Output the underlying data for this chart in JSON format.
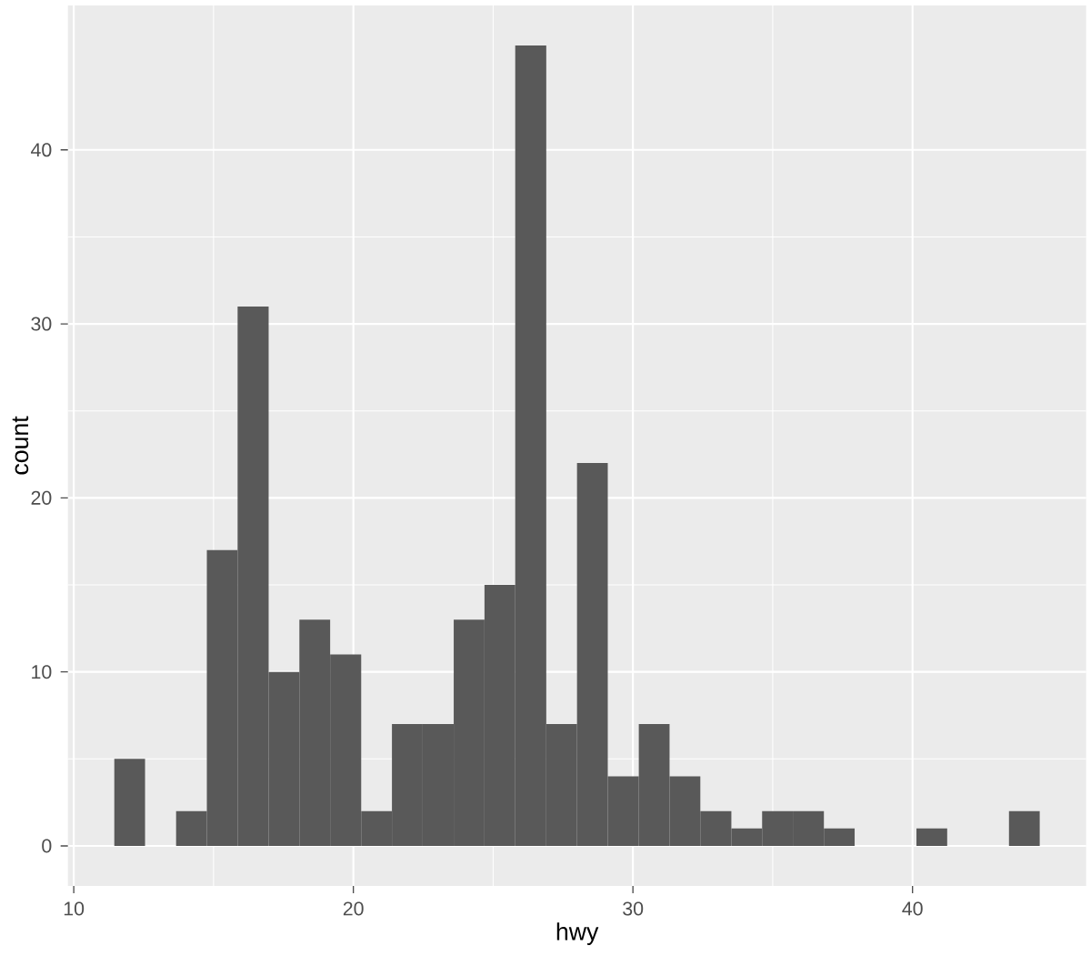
{
  "chart_data": {
    "type": "histogram",
    "xlabel": "hwy",
    "ylabel": "count",
    "bins": [
      11.45,
      12.55,
      13.66,
      14.76,
      15.86,
      16.97,
      18.07,
      19.17,
      20.28,
      21.38,
      22.48,
      23.59,
      24.69,
      25.79,
      26.9,
      28,
      29.1,
      30.21,
      31.31,
      32.41,
      33.52,
      34.62,
      35.72,
      36.83,
      37.93,
      39.03,
      40.14,
      41.24,
      42.34,
      43.45,
      44.55
    ],
    "values": [
      5,
      0,
      2,
      17,
      31,
      10,
      13,
      11,
      2,
      7,
      7,
      13,
      15,
      46,
      7,
      22,
      4,
      7,
      4,
      2,
      1,
      2,
      2,
      1,
      0,
      0,
      1,
      0,
      0,
      2
    ],
    "color": "#595959",
    "xlim": [
      9.79,
      46.21
    ],
    "ylim": [
      -2.3,
      48.3
    ],
    "xticks": [
      10,
      20,
      30,
      40
    ],
    "yticks": [
      0,
      10,
      20,
      30,
      40
    ],
    "grid": true
  }
}
